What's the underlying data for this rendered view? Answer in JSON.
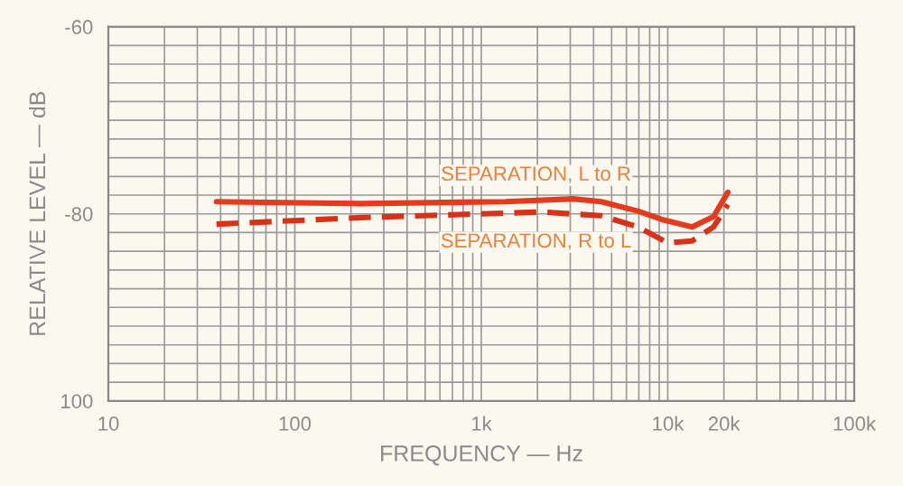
{
  "chart_data": {
    "type": "line",
    "xlabel": "FREQUENCY — Hz",
    "ylabel": "RELATIVE LEVEL — dB",
    "log": "x",
    "grid": true,
    "legend": false,
    "xlim": [
      10,
      100000
    ],
    "xticks": [
      10,
      {
        "value": 20,
        "label": null
      },
      {
        "value": 30,
        "label": null
      },
      {
        "value": 40,
        "label": null
      },
      {
        "value": 50,
        "label": null
      },
      {
        "value": 60,
        "label": null
      },
      {
        "value": 70,
        "label": null
      },
      {
        "value": 80,
        "label": null
      },
      {
        "value": 90,
        "label": null
      },
      100,
      {
        "value": 200,
        "label": null
      },
      {
        "value": 300,
        "label": null
      },
      {
        "value": 400,
        "label": null
      },
      {
        "value": 500,
        "label": null
      },
      {
        "value": 600,
        "label": null
      },
      {
        "value": 700,
        "label": null
      },
      {
        "value": 800,
        "label": null
      },
      {
        "value": 900,
        "label": null
      },
      {
        "value": 1000,
        "label": "1k"
      },
      {
        "value": 2000,
        "label": null
      },
      {
        "value": 3000,
        "label": null
      },
      {
        "value": 4000,
        "label": null
      },
      {
        "value": 5000,
        "label": null
      },
      {
        "value": 6000,
        "label": null
      },
      {
        "value": 7000,
        "label": null
      },
      {
        "value": 8000,
        "label": null
      },
      {
        "value": 9000,
        "label": null
      },
      {
        "value": 10000,
        "label": "10k"
      },
      {
        "value": 20000,
        "label": "20k"
      },
      {
        "value": 30000,
        "label": null
      },
      {
        "value": 40000,
        "label": null
      },
      {
        "value": 50000,
        "label": null
      },
      {
        "value": 60000,
        "label": null
      },
      {
        "value": 70000,
        "label": null
      },
      {
        "value": 80000,
        "label": null
      },
      {
        "value": 90000,
        "label": null
      },
      {
        "value": 100000,
        "label": "100k"
      }
    ],
    "ylim": [
      -100,
      -60
    ],
    "yticks": [
      {
        "value": -60,
        "label": "-60"
      },
      {
        "value": -62,
        "label": null
      },
      {
        "value": -64,
        "label": null
      },
      {
        "value": -66,
        "label": null
      },
      {
        "value": -68,
        "label": null
      },
      {
        "value": -70,
        "label": null
      },
      {
        "value": -72,
        "label": null
      },
      {
        "value": -74,
        "label": null
      },
      {
        "value": -76,
        "label": null
      },
      {
        "value": -78,
        "label": null
      },
      {
        "value": -80,
        "label": "-80"
      },
      {
        "value": -82,
        "label": null
      },
      {
        "value": -84,
        "label": null
      },
      {
        "value": -86,
        "label": null
      },
      {
        "value": -88,
        "label": null
      },
      {
        "value": -90,
        "label": null
      },
      {
        "value": -92,
        "label": null
      },
      {
        "value": -94,
        "label": null
      },
      {
        "value": -96,
        "label": null
      },
      {
        "value": -98,
        "label": null
      },
      {
        "value": -100,
        "label": "100"
      }
    ],
    "series": [
      {
        "name": "SEPARATION, L to R",
        "color": "#e63a1e",
        "line_style": "solid",
        "x": [
          38,
          227,
          1350,
          3100,
          4400,
          6900,
          9300,
          13500,
          17600,
          21000
        ],
        "values": [
          -78.7,
          -78.9,
          -78.7,
          -78.4,
          -78.7,
          -79.7,
          -80.6,
          -81.4,
          -80.3,
          -77.7
        ]
      },
      {
        "name": "SEPARATION, R to L",
        "color": "#d9301a",
        "line_style": "dashed",
        "x": [
          38,
          227,
          2100,
          4400,
          6900,
          10000,
          13500,
          17600,
          21000
        ],
        "values": [
          -81.1,
          -80.4,
          -79.8,
          -80.2,
          -81.4,
          -83.1,
          -82.9,
          -81.4,
          -79.0
        ]
      }
    ]
  }
}
